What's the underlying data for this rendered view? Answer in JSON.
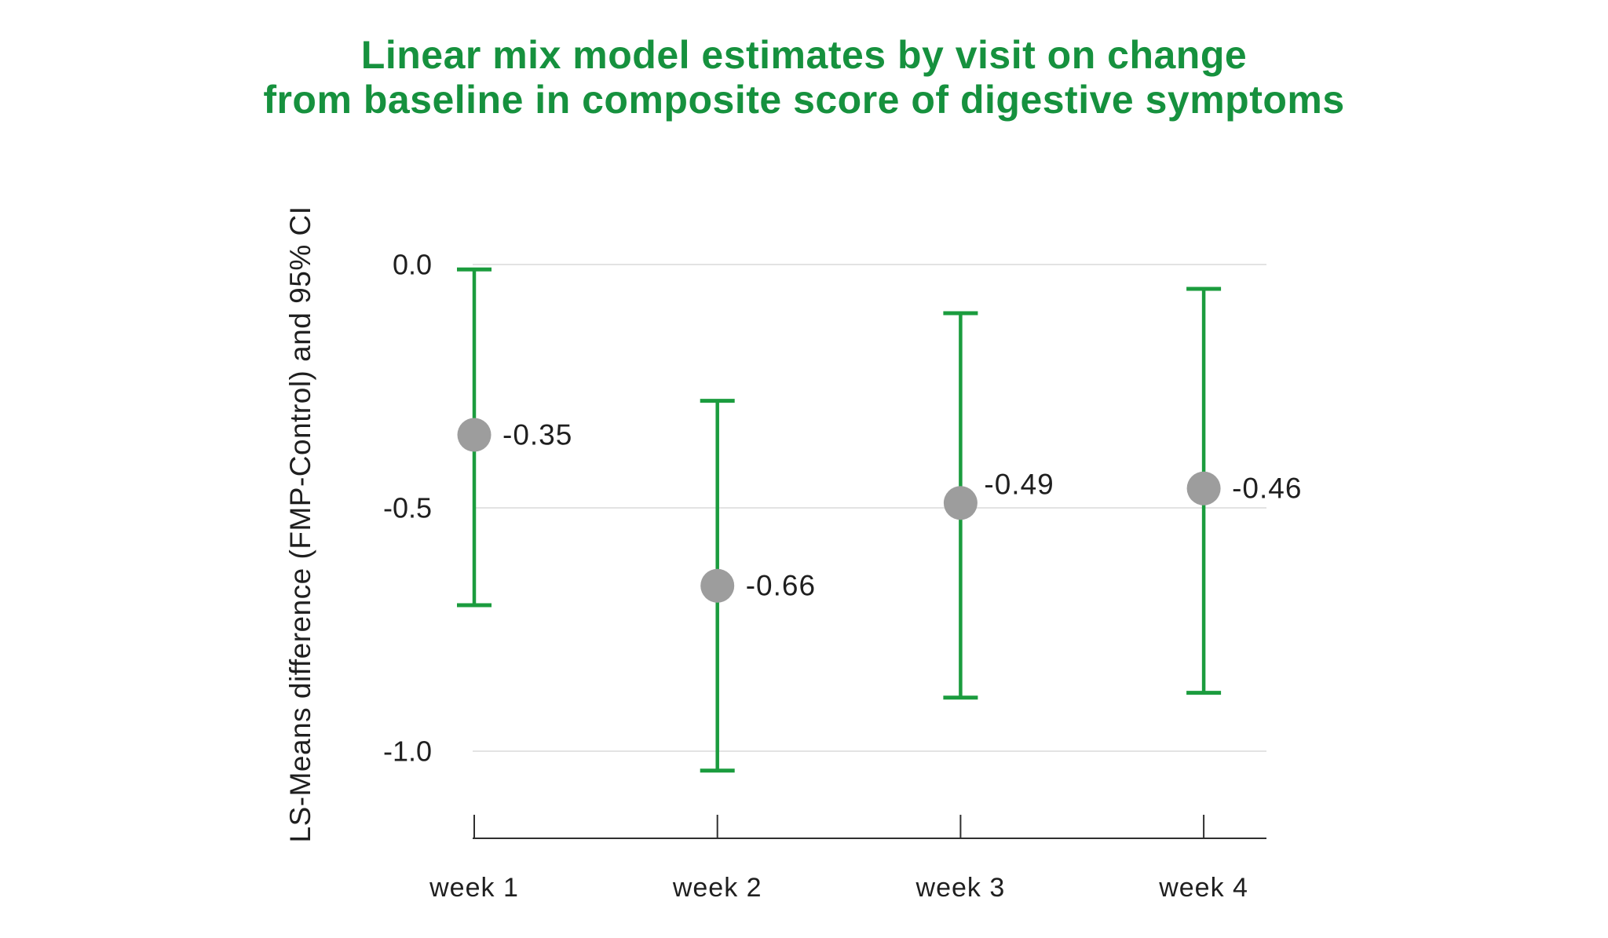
{
  "chart_data": {
    "type": "scatter-errorbar",
    "title": "Linear mix model estimates by visit on change from baseline in composite score of digestive symptoms",
    "title_lines": [
      "Linear mix model estimates by visit on change",
      "from baseline in composite score of digestive symptoms"
    ],
    "categories": [
      "week 1",
      "week 2",
      "week 3",
      "week 4"
    ],
    "series": [
      {
        "name": "LS-Means difference (FMP-Control)",
        "values": [
          -0.35,
          -0.66,
          -0.49,
          -0.46
        ],
        "ci_high": [
          -0.01,
          -0.28,
          -0.1,
          -0.05
        ],
        "ci_low": [
          -0.7,
          -1.04,
          -0.89,
          -0.88
        ],
        "point_labels": [
          "-0.35",
          "-0.66",
          "-0.49",
          "-0.46"
        ]
      }
    ],
    "ylabel": "LS-Means difference (FMP-Control) and 95% CI",
    "xlabel": "",
    "yticks": [
      0.0,
      -0.5,
      -1.0
    ],
    "ytick_labels": [
      "0.0",
      "-0.5",
      "-1.0"
    ],
    "ylim": [
      -1.15,
      0.05
    ],
    "grid": "horizontal",
    "legend": "none",
    "layout_hints": {
      "label_dx": [
        36,
        36,
        30,
        36
      ],
      "label_dy": [
        0,
        0,
        -24,
        0
      ],
      "value_label_side": "right"
    },
    "colors": {
      "title": "#16913e",
      "error_bar": "#1b9c3e",
      "point": "#9d9d9d",
      "grid": "#e3e3e3",
      "axis": "#2f2f2f",
      "text": "#1f1f1f"
    }
  }
}
